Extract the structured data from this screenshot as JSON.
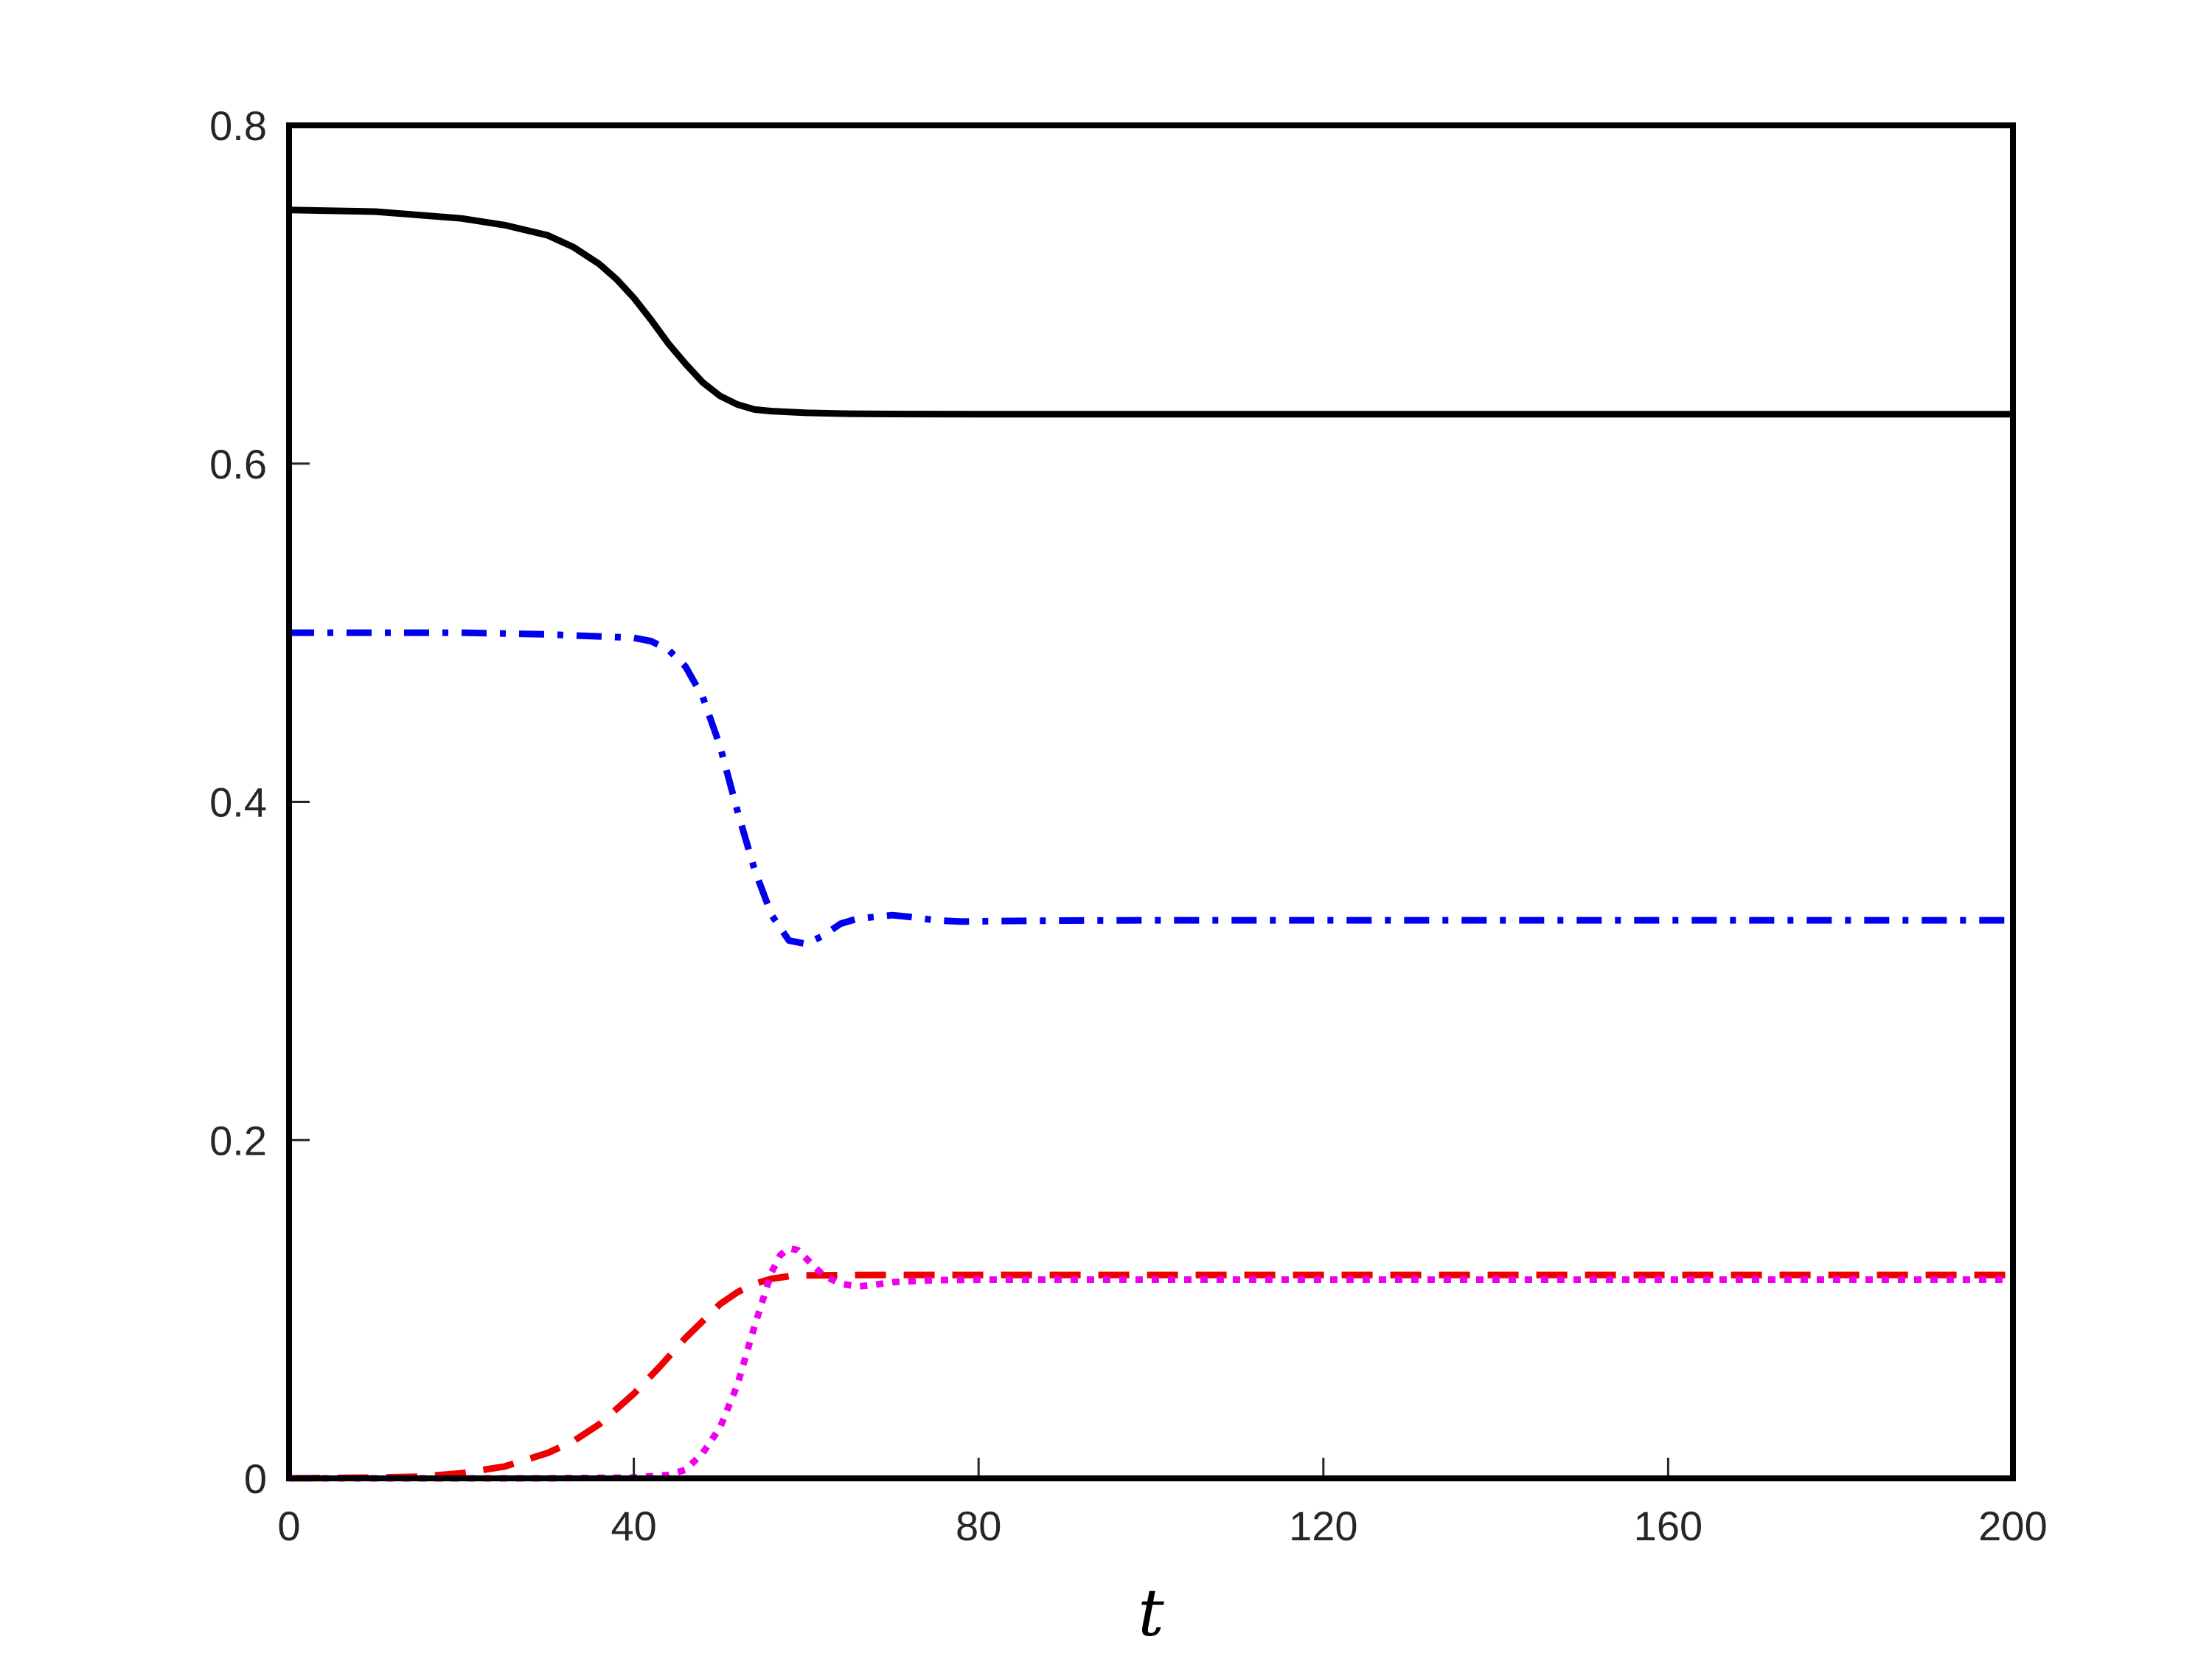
{
  "chart_data": {
    "type": "line",
    "title": "",
    "xlabel": "t",
    "ylabel": "",
    "xlim": [
      0,
      200
    ],
    "ylim": [
      0,
      0.8
    ],
    "xticks": [
      0,
      40,
      80,
      120,
      160,
      200
    ],
    "yticks": [
      0,
      0.2,
      0.4,
      0.6,
      0.8
    ],
    "xtick_labels": [
      "0",
      "40",
      "80",
      "120",
      "160",
      "200"
    ],
    "ytick_labels": [
      "0",
      "0.2",
      "0.4",
      "0.6",
      "0.8"
    ],
    "grid": false,
    "legend": "none",
    "series": [
      {
        "color": "#000000",
        "style": "solid",
        "x": [
          0,
          10,
          20,
          25,
          30,
          33,
          36,
          38,
          40,
          42,
          44,
          46,
          48,
          50,
          52,
          54,
          56,
          58,
          60,
          65,
          70,
          80,
          100,
          150,
          200
        ],
        "y": [
          0.75,
          0.749,
          0.745,
          0.741,
          0.735,
          0.728,
          0.718,
          0.709,
          0.698,
          0.685,
          0.671,
          0.659,
          0.648,
          0.64,
          0.635,
          0.632,
          0.631,
          0.6305,
          0.63,
          0.6295,
          0.6293,
          0.6292,
          0.6292,
          0.6292,
          0.6292
        ]
      },
      {
        "color": "#0000ee",
        "style": "dashdot",
        "x": [
          0,
          20,
          30,
          40,
          42,
          44,
          46,
          48,
          50,
          52,
          54,
          56,
          58,
          60,
          62,
          64,
          66,
          68,
          70,
          72,
          75,
          78,
          82,
          90,
          100,
          150,
          200
        ],
        "y": [
          0.5,
          0.5,
          0.499,
          0.497,
          0.495,
          0.49,
          0.48,
          0.462,
          0.433,
          0.395,
          0.36,
          0.333,
          0.318,
          0.316,
          0.321,
          0.328,
          0.331,
          0.332,
          0.333,
          0.332,
          0.33,
          0.3292,
          0.3295,
          0.3298,
          0.33,
          0.33,
          0.33
        ]
      },
      {
        "color": "#ee0000",
        "style": "dashed",
        "x": [
          0,
          10,
          15,
          20,
          25,
          30,
          33,
          36,
          40,
          43,
          46,
          48,
          50,
          52,
          54,
          56,
          58,
          60,
          65,
          70,
          80,
          100,
          150,
          200
        ],
        "y": [
          0,
          0.0005,
          0.001,
          0.003,
          0.007,
          0.015,
          0.022,
          0.032,
          0.05,
          0.066,
          0.083,
          0.093,
          0.103,
          0.11,
          0.115,
          0.118,
          0.1195,
          0.12,
          0.1202,
          0.1203,
          0.1203,
          0.1203,
          0.1203,
          0.1203
        ]
      },
      {
        "color": "#ee00ee",
        "style": "dotted",
        "x": [
          0,
          30,
          40,
          44,
          46,
          48,
          50,
          52,
          54,
          56,
          57,
          58,
          59,
          60,
          62,
          64,
          66,
          68,
          70,
          75,
          80,
          100,
          150,
          200
        ],
        "y": [
          0,
          0,
          0.0005,
          0.002,
          0.005,
          0.015,
          0.03,
          0.055,
          0.09,
          0.122,
          0.132,
          0.136,
          0.135,
          0.13,
          0.12,
          0.115,
          0.1135,
          0.1145,
          0.116,
          0.1172,
          0.1175,
          0.1175,
          0.1175,
          0.1175
        ]
      }
    ]
  }
}
